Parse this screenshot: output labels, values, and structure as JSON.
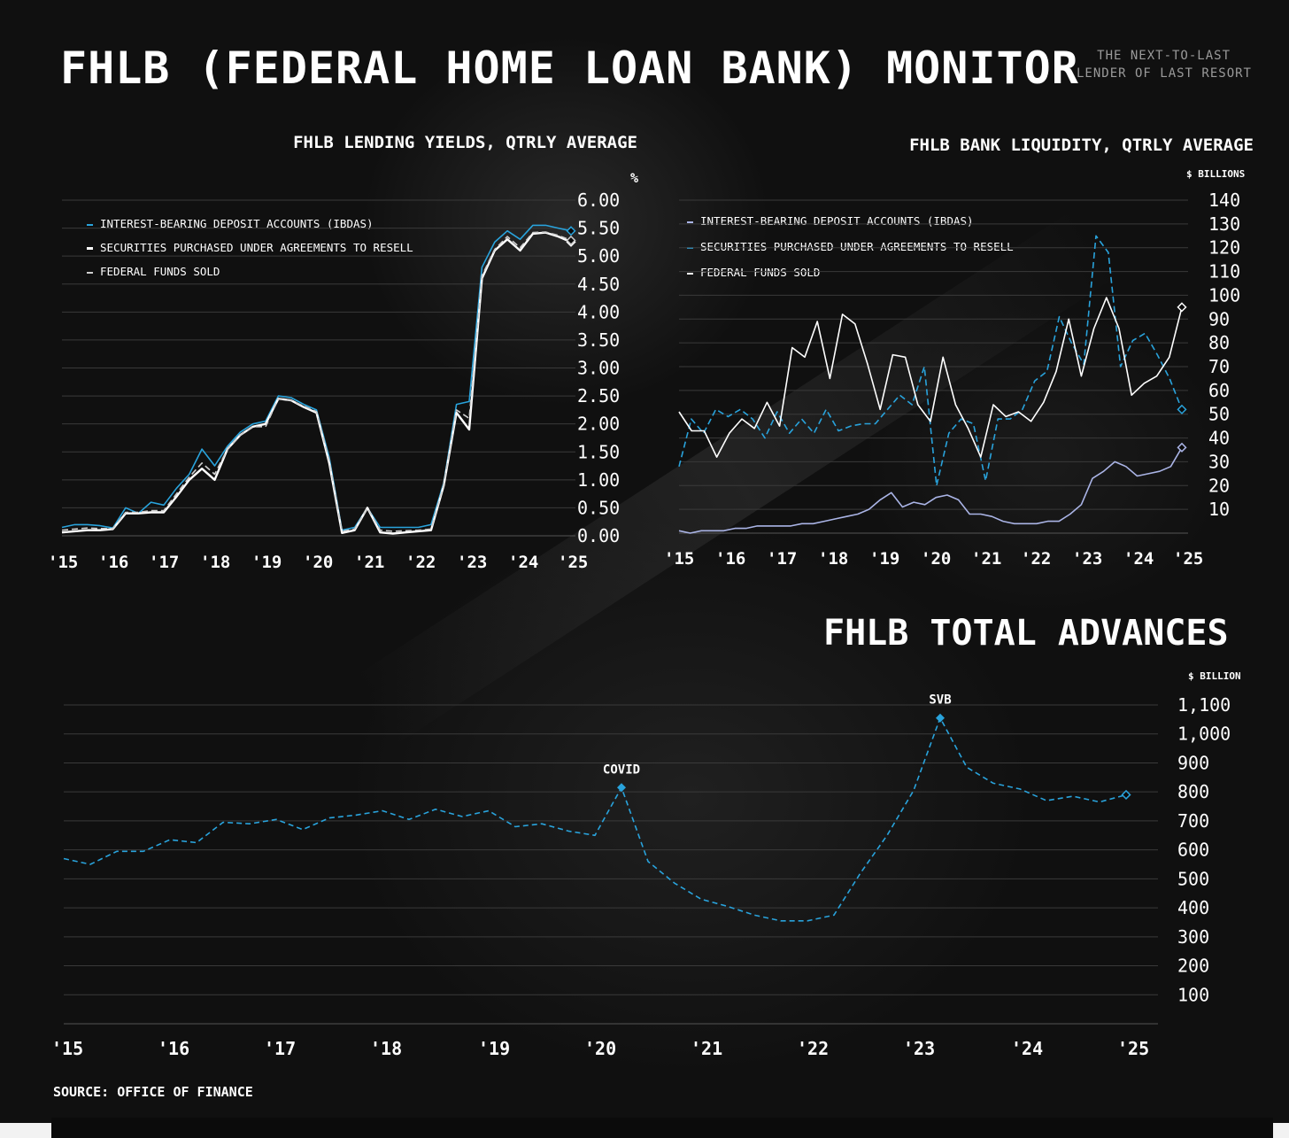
{
  "header": {
    "title": "FHLB (FEDERAL HOME LOAN BANK) MONITOR",
    "tagline_line1": "THE NEXT-TO-LAST",
    "tagline_line2": "LENDER OF LAST RESORT"
  },
  "source": "SOURCE: OFFICE OF FINANCE",
  "colors": {
    "accent": "#29a3dc",
    "white": "#ffffff",
    "lavender": "#aab4e6",
    "grid": "#3a3a3a"
  },
  "chart_data": [
    {
      "type": "line",
      "title": "FHLB LENDING YIELDS, QTRLY AVERAGE",
      "ylabel": "%",
      "ylim": [
        0,
        6
      ],
      "yticks": [
        "0.00",
        "0.50",
        "1.00",
        "1.50",
        "2.00",
        "2.50",
        "3.00",
        "3.50",
        "4.00",
        "4.50",
        "5.00",
        "5.50",
        "6.00"
      ],
      "xticks": [
        "'15",
        "'16",
        "'17",
        "'18",
        "'19",
        "'20",
        "'21",
        "'22",
        "'23",
        "'24",
        "'25"
      ],
      "x_start": 2015.0,
      "x_step": 0.25,
      "series": [
        {
          "name": "INTEREST-BEARING DEPOSIT ACCOUNTS (IBDAS)",
          "color": "#29a3dc",
          "dash": "solid",
          "values": [
            0.15,
            0.2,
            0.2,
            0.18,
            0.14,
            0.5,
            0.4,
            0.6,
            0.55,
            0.85,
            1.1,
            1.55,
            1.25,
            1.6,
            1.85,
            2.0,
            2.05,
            2.5,
            2.47,
            2.35,
            2.25,
            1.4,
            0.1,
            0.15,
            0.5,
            0.15,
            0.15,
            0.15,
            0.15,
            0.2,
            0.95,
            2.35,
            2.4,
            4.8,
            5.25,
            5.45,
            5.3,
            5.55,
            5.55,
            5.5,
            5.45
          ]
        },
        {
          "name": "SECURITIES PURCHASED UNDER AGREEMENTS TO RESELL",
          "color": "#ffffff",
          "dash": "solid",
          "values": [
            0.06,
            0.08,
            0.1,
            0.1,
            0.12,
            0.4,
            0.4,
            0.42,
            0.42,
            0.7,
            1.0,
            1.2,
            1.0,
            1.55,
            1.8,
            1.95,
            2.0,
            2.45,
            2.42,
            2.3,
            2.2,
            1.3,
            0.05,
            0.1,
            0.5,
            0.06,
            0.04,
            0.06,
            0.08,
            0.1,
            0.9,
            2.2,
            1.9,
            4.6,
            5.1,
            5.3,
            5.1,
            5.4,
            5.42,
            5.35,
            5.25
          ]
        },
        {
          "name": "FEDERAL FUNDS SOLD",
          "color": "#cfcfcf",
          "dash": "dashed",
          "values": [
            0.1,
            0.12,
            0.14,
            0.13,
            0.13,
            0.42,
            0.42,
            0.45,
            0.45,
            0.75,
            1.05,
            1.3,
            1.1,
            1.55,
            1.8,
            1.95,
            1.95,
            2.45,
            2.42,
            2.32,
            2.22,
            1.35,
            0.08,
            0.12,
            0.5,
            0.1,
            0.08,
            0.09,
            0.1,
            0.12,
            0.92,
            2.25,
            2.1,
            4.65,
            5.12,
            5.35,
            5.15,
            5.42,
            5.43,
            5.37,
            5.28
          ]
        }
      ]
    },
    {
      "type": "line",
      "title": "FHLB BANK LIQUIDITY, QTRLY AVERAGE",
      "ylabel": "$ BILLIONS",
      "ylim": [
        0,
        140
      ],
      "yticks": [
        "10",
        "20",
        "30",
        "40",
        "50",
        "60",
        "70",
        "80",
        "90",
        "100",
        "110",
        "120",
        "130",
        "140"
      ],
      "xticks": [
        "'15",
        "'16",
        "'17",
        "'18",
        "'19",
        "'20",
        "'21",
        "'22",
        "'23",
        "'24",
        "'25"
      ],
      "x_start": 2015.0,
      "x_step": 0.25,
      "series": [
        {
          "name": "INTEREST-BEARING DEPOSIT ACCOUNTS (IBDAS)",
          "color": "#aab4e6",
          "dash": "solid",
          "values": [
            1,
            0,
            1,
            1,
            1,
            2,
            2,
            3,
            3,
            3,
            3,
            4,
            4,
            5,
            6,
            7,
            8,
            10,
            14,
            17,
            11,
            13,
            12,
            15,
            16,
            14,
            8,
            8,
            7,
            5,
            4,
            4,
            4,
            5,
            5,
            8,
            12,
            23,
            26,
            30,
            28,
            24,
            25,
            26,
            28,
            36
          ]
        },
        {
          "name": "SECURITIES PURCHASED UNDER AGREEMENTS TO RESELL",
          "color": "#29a3dc",
          "dash": "dashed",
          "values": [
            28,
            48,
            42,
            52,
            49,
            52,
            48,
            40,
            51,
            42,
            48,
            42,
            52,
            43,
            45,
            46,
            46,
            52,
            58,
            54,
            70,
            20,
            42,
            48,
            46,
            22,
            48,
            48,
            52,
            64,
            68,
            91,
            80,
            71,
            125,
            118,
            70,
            81,
            84,
            75,
            65,
            52
          ]
        },
        {
          "name": "FEDERAL FUNDS SOLD",
          "color": "#ffffff",
          "dash": "solid",
          "values": [
            51,
            43,
            43,
            32,
            42,
            48,
            44,
            55,
            45,
            78,
            74,
            89,
            65,
            92,
            88,
            71,
            52,
            75,
            74,
            54,
            47,
            74,
            54,
            44,
            32,
            54,
            49,
            51,
            47,
            55,
            68,
            90,
            66,
            86,
            99,
            86,
            58,
            63,
            66,
            74,
            95
          ]
        }
      ]
    },
    {
      "type": "line",
      "title": "FHLB TOTAL ADVANCES",
      "ylabel": "$ BILLION",
      "ylim": [
        0,
        1100
      ],
      "yticks": [
        "100",
        "200",
        "300",
        "400",
        "500",
        "600",
        "700",
        "800",
        "900",
        "1,000",
        "1,100"
      ],
      "xticks": [
        "'15",
        "'16",
        "'17",
        "'18",
        "'19",
        "'20",
        "'21",
        "'22",
        "'23",
        "'24",
        "'25"
      ],
      "x_start": 2015.0,
      "x_step": 0.25,
      "annotations": [
        {
          "label": "COVID",
          "x": 2020.25,
          "y": 815
        },
        {
          "label": "SVB",
          "x": 2023.25,
          "y": 1055
        }
      ],
      "series": [
        {
          "name": "TOTAL ADVANCES",
          "color": "#29a3dc",
          "dash": "dashed",
          "values": [
            570,
            550,
            595,
            595,
            635,
            625,
            695,
            690,
            705,
            670,
            710,
            720,
            735,
            705,
            740,
            715,
            735,
            680,
            690,
            665,
            650,
            815,
            560,
            485,
            430,
            405,
            375,
            355,
            355,
            375,
            520,
            650,
            805,
            1055,
            885,
            830,
            810,
            770,
            785,
            765,
            790
          ]
        }
      ]
    }
  ]
}
